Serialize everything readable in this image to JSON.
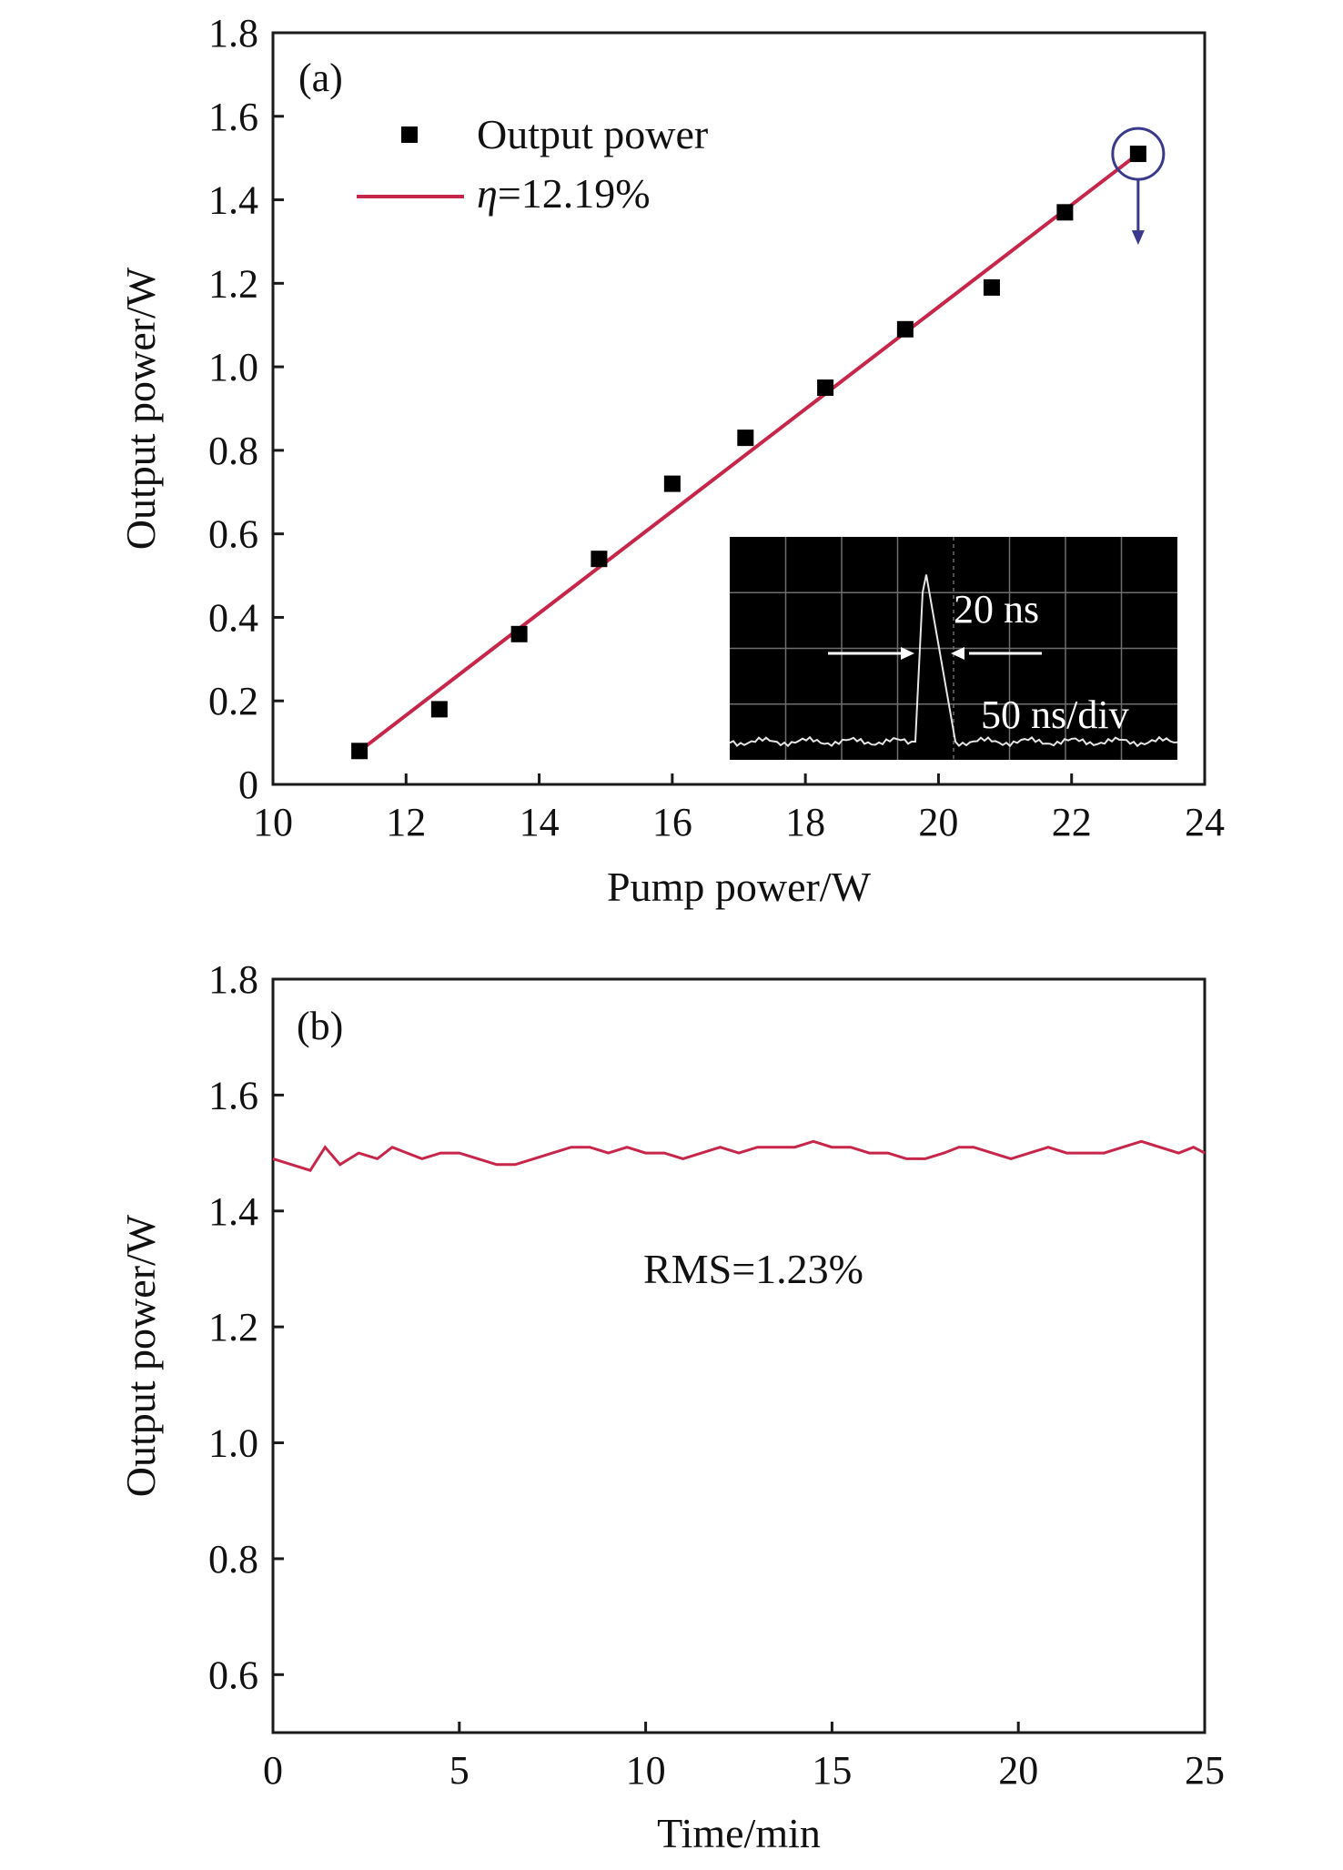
{
  "chart_data": [
    {
      "type": "scatter",
      "panel_label": "(a)",
      "xlabel": "Pump power/W",
      "ylabel": "Output power/W",
      "xlim": [
        10,
        24
      ],
      "ylim": [
        0,
        1.8
      ],
      "xticks": [
        10,
        12,
        14,
        16,
        18,
        20,
        22,
        24
      ],
      "xtick_labels": [
        "10",
        "12",
        "14",
        "16",
        "18",
        "20",
        "22",
        "24"
      ],
      "yticks": [
        0,
        0.2,
        0.4,
        0.6,
        0.8,
        1.0,
        1.2,
        1.4,
        1.6,
        1.8
      ],
      "ytick_labels": [
        "0",
        "0.2",
        "0.4",
        "0.6",
        "0.8",
        "1.0",
        "1.2",
        "1.4",
        "1.6",
        "1.8"
      ],
      "series": [
        {
          "name": "Output power",
          "kind": "points",
          "x": [
            11.3,
            12.5,
            13.7,
            14.9,
            16.0,
            17.1,
            18.3,
            19.5,
            20.8,
            21.9,
            23.0
          ],
          "y": [
            0.08,
            0.18,
            0.36,
            0.54,
            0.72,
            0.83,
            0.95,
            1.09,
            1.19,
            1.37,
            1.51
          ],
          "color": "#000000"
        },
        {
          "name": "η=12.19%",
          "name_symbol": "η",
          "name_rest": "=12.19%",
          "kind": "fit-line",
          "x": [
            11.3,
            23.0
          ],
          "y": [
            0.08,
            1.51
          ],
          "color": "#c8254a"
        }
      ],
      "legend_position": "top-left",
      "highlight_point": {
        "x": 23.0,
        "y": 1.51,
        "marker": "circle-with-down-arrow",
        "color": "#3a3a8c"
      },
      "inset": {
        "description": "oscilloscope pulse trace",
        "pulse_width_label": "20 ns",
        "timebase_label": "50 ns/div",
        "background": "#000000",
        "trace_color": "#e0e0e0"
      }
    },
    {
      "type": "line",
      "panel_label": "(b)",
      "xlabel": "Time/min",
      "ylabel": "Output power/W",
      "xlim": [
        0,
        25
      ],
      "ylim": [
        0.5,
        1.8
      ],
      "xticks": [
        0,
        5,
        10,
        15,
        20,
        25
      ],
      "xtick_labels": [
        "0",
        "5",
        "10",
        "15",
        "20",
        "25"
      ],
      "yticks": [
        0.6,
        0.8,
        1.0,
        1.2,
        1.4,
        1.6,
        1.8
      ],
      "ytick_labels": [
        "0.6",
        "0.8",
        "1.0",
        "1.2",
        "1.4",
        "1.6",
        "1.8"
      ],
      "series": [
        {
          "name": "",
          "color": "#c8254a",
          "x": [
            0.0,
            0.5,
            1.0,
            1.4,
            1.8,
            2.3,
            2.8,
            3.2,
            3.6,
            4.0,
            4.5,
            5.0,
            5.5,
            6.0,
            6.5,
            7.0,
            7.5,
            8.0,
            8.5,
            9.0,
            9.5,
            10.0,
            10.5,
            11.0,
            11.5,
            12.0,
            12.5,
            13.0,
            13.5,
            14.0,
            14.5,
            15.0,
            15.5,
            16.0,
            16.5,
            17.0,
            17.5,
            18.0,
            18.4,
            18.8,
            19.3,
            19.8,
            20.3,
            20.8,
            21.3,
            21.8,
            22.3,
            22.8,
            23.3,
            23.8,
            24.3,
            24.7,
            25.0
          ],
          "y": [
            1.49,
            1.48,
            1.47,
            1.51,
            1.48,
            1.5,
            1.49,
            1.51,
            1.5,
            1.49,
            1.5,
            1.5,
            1.49,
            1.48,
            1.48,
            1.49,
            1.5,
            1.51,
            1.51,
            1.5,
            1.51,
            1.5,
            1.5,
            1.49,
            1.5,
            1.51,
            1.5,
            1.51,
            1.51,
            1.51,
            1.52,
            1.51,
            1.51,
            1.5,
            1.5,
            1.49,
            1.49,
            1.5,
            1.51,
            1.51,
            1.5,
            1.49,
            1.5,
            1.51,
            1.5,
            1.5,
            1.5,
            1.51,
            1.52,
            1.51,
            1.5,
            1.51,
            1.5
          ]
        }
      ],
      "annotation": "RMS=1.23%"
    }
  ]
}
